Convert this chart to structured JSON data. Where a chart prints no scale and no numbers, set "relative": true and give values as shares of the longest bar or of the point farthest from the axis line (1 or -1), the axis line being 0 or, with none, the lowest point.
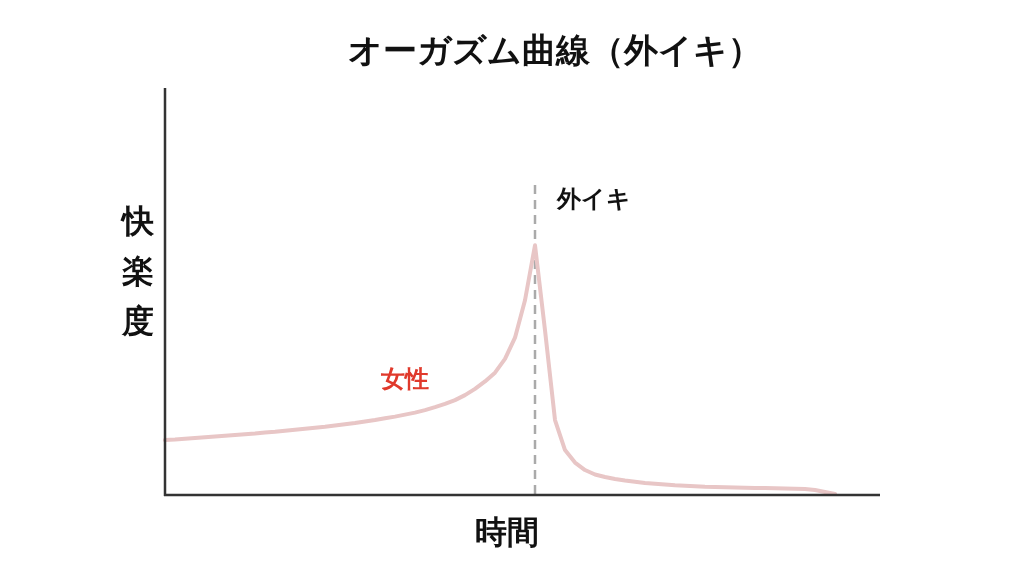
{
  "chart_data": {
    "type": "line",
    "title": "オーガズム曲線（外イキ）",
    "xlabel": "時間",
    "ylabel": "快楽度",
    "relative": true,
    "categories": [
      null,
      null,
      null,
      null,
      null,
      null,
      null,
      null,
      null,
      null,
      null,
      null,
      null,
      null,
      null,
      null,
      null,
      null,
      null,
      null,
      null,
      null,
      null,
      null,
      null,
      null,
      null,
      null,
      null,
      null,
      null,
      null,
      null,
      null,
      null,
      null,
      null,
      null,
      null,
      null,
      null,
      null,
      null,
      null,
      null,
      null,
      null,
      null,
      null,
      null,
      null,
      null,
      null,
      null,
      null,
      null,
      null,
      null,
      null,
      null,
      null,
      null,
      null,
      null,
      null,
      null,
      null,
      null
    ],
    "series": [
      {
        "name": "女性",
        "color": "#e8c6c6",
        "values": [
          0.22,
          0.222,
          0.225,
          0.228,
          0.231,
          0.234,
          0.237,
          0.24,
          0.243,
          0.246,
          0.25,
          0.253,
          0.257,
          0.261,
          0.265,
          0.269,
          0.273,
          0.278,
          0.283,
          0.288,
          0.294,
          0.3,
          0.307,
          0.314,
          0.322,
          0.33,
          0.34,
          0.352,
          0.365,
          0.38,
          0.4,
          0.425,
          0.455,
          0.49,
          0.545,
          0.63,
          0.78,
          1.0,
          0.66,
          0.3,
          0.18,
          0.13,
          0.1,
          0.082,
          0.072,
          0.064,
          0.058,
          0.053,
          0.048,
          0.045,
          0.042,
          0.039,
          0.037,
          0.035,
          0.033,
          0.032,
          0.031,
          0.03,
          0.029,
          0.028,
          0.028,
          0.027,
          0.026,
          0.025,
          0.024,
          0.02,
          0.012,
          0.004
        ]
      }
    ],
    "annotations": [
      "外イキ"
    ]
  }
}
